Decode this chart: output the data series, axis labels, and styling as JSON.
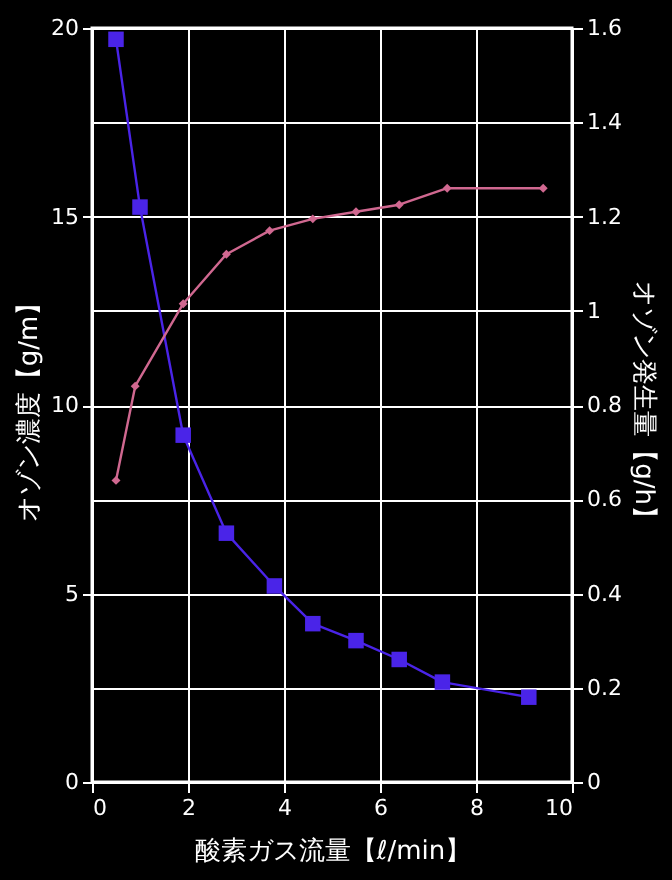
{
  "chart_data": {
    "type": "line",
    "xlabel": "酸素ガス流量【ℓ/min】",
    "ylabel": "オゾン濃度【g/m】",
    "y2label": "オゾン発生量【g/h】",
    "xlim": [
      0,
      10
    ],
    "xticks": [
      0,
      2,
      4,
      6,
      8,
      10
    ],
    "ylim": [
      0,
      20
    ],
    "yticks": [
      0,
      5,
      10,
      15,
      20
    ],
    "y2lim": [
      0,
      1.6
    ],
    "y2ticks": [
      0,
      0.2,
      0.4,
      0.6,
      0.8,
      1,
      1.2,
      1.4,
      1.6
    ],
    "grid": true,
    "series": [
      {
        "color": "#4a24e8",
        "marker": "square",
        "line_style": "solid",
        "x": [
          0.5,
          1.0,
          1.9,
          2.8,
          3.8,
          4.6,
          5.5,
          6.4,
          7.3,
          9.1
        ],
        "values": [
          19.7,
          15.25,
          9.2,
          6.6,
          5.2,
          4.2,
          3.75,
          3.25,
          2.65,
          2.25
        ]
      },
      {
        "color": "#d06890",
        "marker": "diamond",
        "line_style": "solid",
        "axis": "y2",
        "x": [
          0.5,
          0.9,
          1.9,
          2.8,
          3.7,
          4.6,
          5.5,
          6.4,
          7.4,
          9.4
        ],
        "values": [
          0.64,
          0.84,
          1.015,
          1.12,
          1.17,
          1.195,
          1.21,
          1.225,
          1.26,
          1.26
        ]
      }
    ]
  }
}
